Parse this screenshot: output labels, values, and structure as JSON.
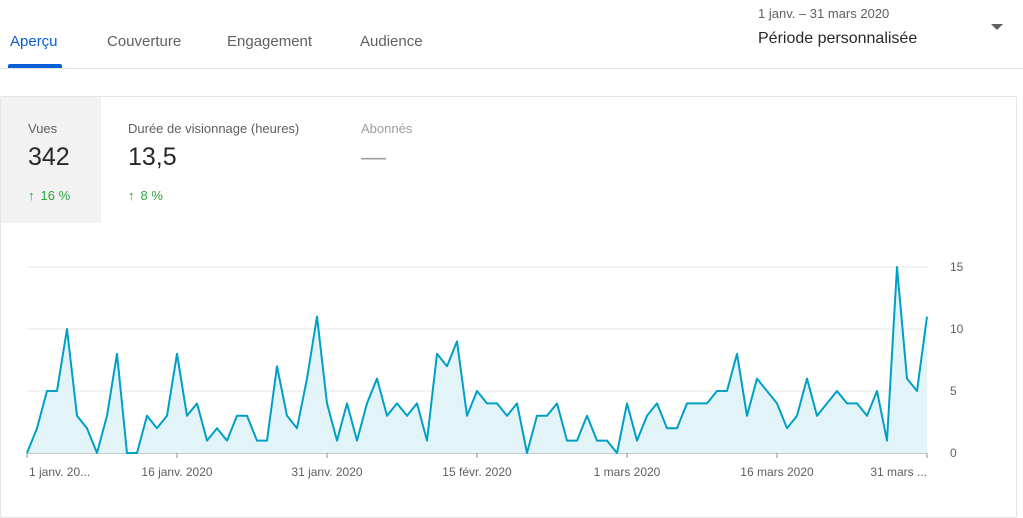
{
  "tabs": [
    {
      "label": "Aperçu",
      "active": true
    },
    {
      "label": "Couverture",
      "active": false
    },
    {
      "label": "Engagement",
      "active": false
    },
    {
      "label": "Audience",
      "active": false
    }
  ],
  "period": {
    "range": "1 janv. – 31 mars 2020",
    "label": "Période personnalisée"
  },
  "metrics": [
    {
      "label": "Vues",
      "value": "342",
      "delta": "16 %"
    },
    {
      "label": "Durée de visionnage (heures)",
      "value": "13,5",
      "delta": "8 %"
    },
    {
      "label": "Abonnés",
      "value": "—"
    }
  ],
  "colors": {
    "accent": "#065fd4",
    "line": "#00a0c6",
    "fill": "#e3f4f8",
    "up": "#2ba640"
  },
  "chart_data": {
    "type": "area",
    "title": "",
    "xlabel": "",
    "ylabel": "",
    "ylim": [
      0,
      15
    ],
    "yticks": [
      "0",
      "5",
      "10",
      "15"
    ],
    "xtick_labels": [
      "1 janv. 20...",
      "16 janv. 2020",
      "31 janv. 2020",
      "15 févr. 2020",
      "1 mars 2020",
      "16 mars 2020",
      "31 mars ..."
    ],
    "series": [
      {
        "values": [
          0,
          2,
          5,
          5,
          10,
          3,
          2,
          0,
          3,
          8,
          0,
          0,
          3,
          2,
          3,
          8,
          3,
          4,
          1,
          2,
          1,
          3,
          3,
          1,
          1,
          7,
          3,
          2,
          6,
          11,
          4,
          1,
          4,
          1,
          4,
          6,
          3,
          4,
          3,
          4,
          1,
          8,
          7,
          9,
          3,
          5,
          4,
          4,
          3,
          4,
          0,
          3,
          3,
          4,
          1,
          1,
          3,
          1,
          1,
          0,
          4,
          1,
          3,
          4,
          2,
          2,
          4,
          4,
          4,
          5,
          5,
          8,
          3,
          6,
          5,
          4,
          2,
          3,
          6,
          3,
          4,
          5,
          4,
          4,
          3,
          5,
          1,
          15,
          6,
          5,
          11
        ]
      }
    ]
  }
}
